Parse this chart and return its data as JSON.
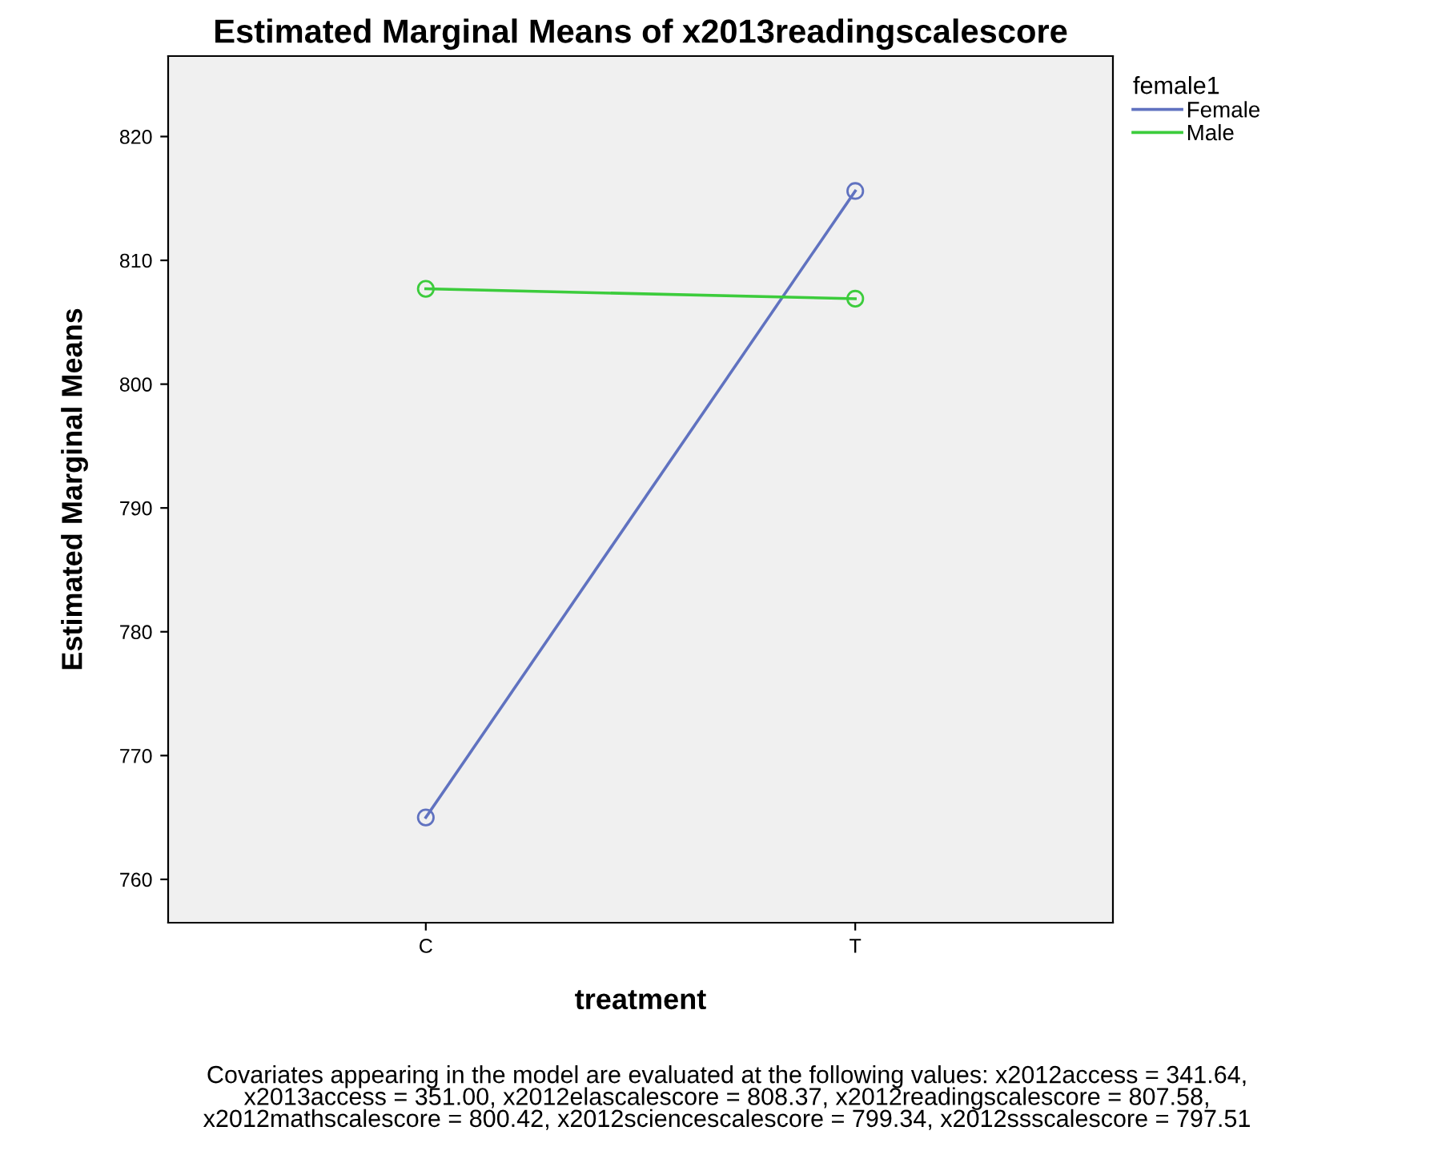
{
  "chart_data": {
    "type": "line",
    "title": "Estimated Marginal Means of x2013readingscalescore",
    "xlabel": "treatment",
    "ylabel": "Estimated Marginal Means",
    "legend_title": "female1",
    "categories": [
      "C",
      "T"
    ],
    "series": [
      {
        "name": "Female",
        "color": "#6072c0",
        "values": [
          765.0,
          815.6
        ]
      },
      {
        "name": "Male",
        "color": "#3ccc3c",
        "values": [
          807.7,
          806.9
        ]
      }
    ],
    "ylim": [
      756.5,
      826.5
    ],
    "yticks": [
      760,
      770,
      780,
      790,
      800,
      810,
      820
    ],
    "marker": "circle",
    "grid": false,
    "legend": "right",
    "annotations": [
      "Covariates appearing in the model are evaluated at the following values: x2012access = 341.64,\nx2013access = 351.00, x2012elascalescore = 808.37, x2012readingscalescore = 807.58,\nx2012mathscalescore = 800.42, x2012sciencescalescore = 799.34, x2012ssscalescore = 797.51"
    ]
  }
}
